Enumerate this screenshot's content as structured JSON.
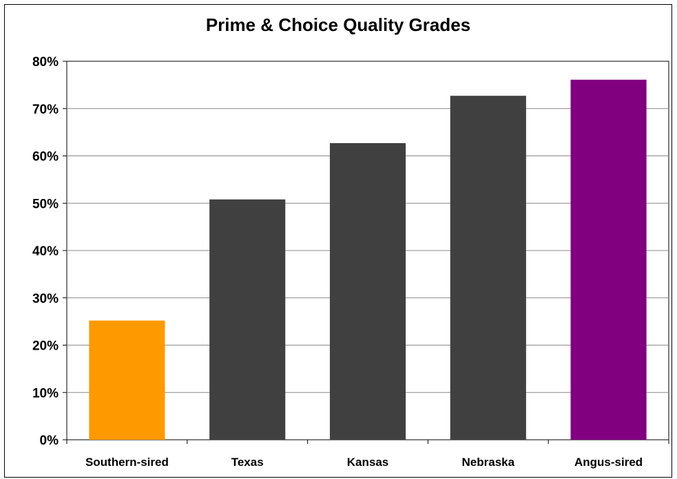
{
  "chart_data": {
    "type": "bar",
    "title": "Prime & Choice Quality Grades",
    "xlabel": "",
    "ylabel": "",
    "categories": [
      "Southern-sired",
      "Texas",
      "Kansas",
      "Nebraska",
      "Angus-sired"
    ],
    "values": [
      25.2,
      50.8,
      62.7,
      72.7,
      76.1
    ],
    "bar_colors": [
      "#FF9900",
      "#404040",
      "#404040",
      "#404040",
      "#800080"
    ],
    "ylim": [
      0,
      80
    ],
    "yticks": [
      0,
      10,
      20,
      30,
      40,
      50,
      60,
      70,
      80
    ],
    "ytick_labels": [
      "0%",
      "10%",
      "20%",
      "30%",
      "40%",
      "50%",
      "60%",
      "70%",
      "80%"
    ],
    "grid": true,
    "legend": "none"
  }
}
